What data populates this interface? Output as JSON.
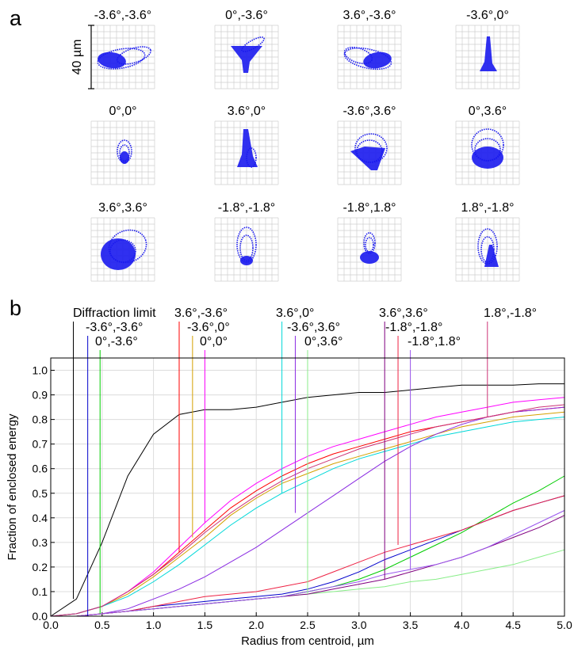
{
  "panel_a": {
    "label": "a",
    "scale_label": "40 µm",
    "spots": [
      {
        "name": "-3.6°,-3.6°",
        "shape": "flare-right"
      },
      {
        "name": "0°,-3.6°",
        "shape": "funnel"
      },
      {
        "name": "3.6°,-3.6°",
        "shape": "flare-left"
      },
      {
        "name": "-3.6°,0°",
        "shape": "spike"
      },
      {
        "name": "0°,0°",
        "shape": "ring-small"
      },
      {
        "name": "3.6°,0°",
        "shape": "spike-wide"
      },
      {
        "name": "-3.6°,3.6°",
        "shape": "fan"
      },
      {
        "name": "0°,3.6°",
        "shape": "ring-large"
      },
      {
        "name": "3.6°,3.6°",
        "shape": "blob"
      },
      {
        "name": "-1.8°,-1.8°",
        "shape": "loops"
      },
      {
        "name": "-1.8°,1.8°",
        "shape": "loops-small"
      },
      {
        "name": "1.8°,-1.8°",
        "shape": "loops-right"
      }
    ]
  },
  "panel_b": {
    "label": "b"
  },
  "colors": {
    "spot": "#1a1aee",
    "grid": "#cfcfcf"
  },
  "chart_data": {
    "type": "line",
    "xlabel": "Radius from centroid, µm",
    "ylabel": "Fraction of enclosed energy",
    "xlim": [
      0,
      5
    ],
    "ylim": [
      0,
      1.05
    ],
    "xticks": [
      "0.0",
      "0.5",
      "1.0",
      "1.5",
      "2.0",
      "2.5",
      "3.0",
      "3.5",
      "4.0",
      "4.5",
      "5.0"
    ],
    "yticks": [
      "0.0",
      "0.1",
      "0.2",
      "0.3",
      "0.4",
      "0.5",
      "0.6",
      "0.7",
      "0.8",
      "0.9",
      "1.0"
    ],
    "grid": true,
    "x": [
      0,
      0.25,
      0.5,
      0.75,
      1.0,
      1.25,
      1.5,
      1.75,
      2.0,
      2.25,
      2.5,
      2.75,
      3.0,
      3.25,
      3.5,
      3.75,
      4.0,
      4.25,
      4.5,
      4.75,
      5.0
    ],
    "series": [
      {
        "name": "Diffraction limit",
        "color": "#000000",
        "marker_x": 0.22,
        "values": [
          0,
          0.07,
          0.3,
          0.57,
          0.74,
          0.82,
          0.84,
          0.84,
          0.85,
          0.87,
          0.89,
          0.9,
          0.91,
          0.91,
          0.92,
          0.93,
          0.94,
          0.94,
          0.94,
          0.945,
          0.945
        ]
      },
      {
        "name": "3.6°,-3.6°",
        "color": "#ff0000",
        "marker_x": 1.25,
        "values": [
          0,
          0.01,
          0.04,
          0.1,
          0.17,
          0.26,
          0.35,
          0.44,
          0.51,
          0.57,
          0.62,
          0.66,
          0.69,
          0.72,
          0.75,
          0.77,
          0.79,
          0.81,
          0.83,
          0.84,
          0.85
        ]
      },
      {
        "name": "-3.6°,-3.6°",
        "color": "#0000cc",
        "marker_x": 0.36,
        "values": [
          0,
          0.0,
          0.01,
          0.02,
          0.04,
          0.05,
          0.06,
          0.07,
          0.08,
          0.09,
          0.11,
          0.14,
          0.18,
          0.23,
          0.27,
          0.31,
          0.35,
          0.39,
          0.43,
          0.46,
          0.49
        ]
      },
      {
        "name": "-3.6°,0°",
        "color": "#d4a000",
        "marker_x": 1.38,
        "values": [
          0,
          0.01,
          0.04,
          0.09,
          0.16,
          0.24,
          0.32,
          0.41,
          0.48,
          0.54,
          0.58,
          0.62,
          0.65,
          0.68,
          0.71,
          0.74,
          0.77,
          0.79,
          0.81,
          0.82,
          0.83
        ]
      },
      {
        "name": "0°,-3.6°",
        "color": "#00cc00",
        "marker_x": 0.48,
        "values": [
          0,
          0.0,
          0.01,
          0.02,
          0.03,
          0.04,
          0.05,
          0.06,
          0.07,
          0.08,
          0.1,
          0.12,
          0.15,
          0.19,
          0.24,
          0.29,
          0.34,
          0.4,
          0.46,
          0.51,
          0.57
        ]
      },
      {
        "name": "0°,0°",
        "color": "#ff00ff",
        "marker_x": 1.5,
        "values": [
          0,
          0.01,
          0.04,
          0.1,
          0.18,
          0.28,
          0.38,
          0.47,
          0.54,
          0.6,
          0.65,
          0.69,
          0.72,
          0.75,
          0.78,
          0.81,
          0.83,
          0.85,
          0.87,
          0.88,
          0.89
        ]
      },
      {
        "name": "3.6°,0°",
        "color": "#00d8d8",
        "marker_x": 2.25,
        "values": [
          0,
          0.01,
          0.04,
          0.08,
          0.14,
          0.21,
          0.29,
          0.37,
          0.44,
          0.5,
          0.55,
          0.6,
          0.64,
          0.67,
          0.7,
          0.73,
          0.75,
          0.77,
          0.79,
          0.8,
          0.81
        ]
      },
      {
        "name": "-3.6°,3.6°",
        "color": "#8a2be2",
        "marker_x": 2.38,
        "values": [
          0,
          0.0,
          0.01,
          0.03,
          0.07,
          0.11,
          0.16,
          0.22,
          0.28,
          0.35,
          0.42,
          0.49,
          0.56,
          0.63,
          0.69,
          0.74,
          0.78,
          0.81,
          0.83,
          0.84,
          0.85
        ]
      },
      {
        "name": "0°,3.6°",
        "color": "#88ee88",
        "marker_x": 2.5,
        "values": [
          0,
          0.0,
          0.01,
          0.02,
          0.03,
          0.04,
          0.05,
          0.06,
          0.07,
          0.08,
          0.09,
          0.1,
          0.11,
          0.12,
          0.14,
          0.15,
          0.17,
          0.19,
          0.21,
          0.24,
          0.27
        ]
      },
      {
        "name": "3.6°,3.6°",
        "color": "#800080",
        "marker_x": 3.25,
        "values": [
          0,
          0.0,
          0.01,
          0.02,
          0.03,
          0.04,
          0.05,
          0.06,
          0.07,
          0.08,
          0.09,
          0.11,
          0.13,
          0.15,
          0.18,
          0.21,
          0.24,
          0.28,
          0.32,
          0.36,
          0.41
        ]
      },
      {
        "name": "-1.8°,-1.8°",
        "color": "#ee2244",
        "marker_x": 3.38,
        "values": [
          0,
          0.0,
          0.01,
          0.02,
          0.04,
          0.06,
          0.08,
          0.09,
          0.1,
          0.12,
          0.14,
          0.18,
          0.22,
          0.26,
          0.29,
          0.32,
          0.35,
          0.39,
          0.43,
          0.46,
          0.49
        ]
      },
      {
        "name": "-1.8°,1.8°",
        "color": "#9a55ee",
        "marker_x": 3.5,
        "values": [
          0,
          0.0,
          0.01,
          0.02,
          0.03,
          0.04,
          0.05,
          0.06,
          0.07,
          0.08,
          0.1,
          0.12,
          0.14,
          0.17,
          0.19,
          0.21,
          0.24,
          0.28,
          0.33,
          0.38,
          0.43
        ]
      },
      {
        "name": "1.8°,-1.8°",
        "color": "#cc3377",
        "marker_x": 4.25,
        "values": [
          0,
          0.01,
          0.04,
          0.1,
          0.17,
          0.25,
          0.34,
          0.42,
          0.49,
          0.55,
          0.6,
          0.64,
          0.68,
          0.71,
          0.74,
          0.77,
          0.79,
          0.81,
          0.83,
          0.85,
          0.86
        ]
      }
    ],
    "legend_rows": [
      [
        "Diffraction limit",
        "3.6°,-3.6°",
        "3.6°,0°",
        "3.6°,3.6°",
        "1.8°,-1.8°"
      ],
      [
        "-3.6°,-3.6°",
        "-3.6°,0°",
        "-3.6°,3.6°",
        "-1.8°,-1.8°"
      ],
      [
        "0°,-3.6°",
        "0°,0°",
        "0°,3.6°",
        "-1.8°,1.8°"
      ]
    ]
  }
}
